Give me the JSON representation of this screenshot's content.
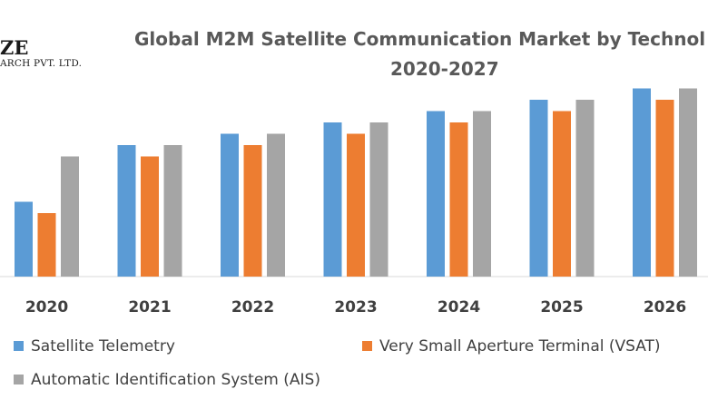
{
  "logo": {
    "name": "ZE",
    "subtitle": "ARCH PVT. LTD."
  },
  "chart_data": {
    "type": "bar",
    "title": "Global M2M Satellite Communication Market by Technol",
    "subtitle": "2020-2027",
    "categories": [
      "2020",
      "2021",
      "2022",
      "2023",
      "2024",
      "2025",
      "2026"
    ],
    "series": [
      {
        "name": "Satellite Telemetry",
        "color": "#5b9bd5",
        "values": [
          3.3,
          5.8,
          6.3,
          6.8,
          7.3,
          7.8,
          8.3
        ]
      },
      {
        "name": "Very Small Aperture Terminal (VSAT)",
        "color": "#ed7d31",
        "values": [
          2.8,
          5.3,
          5.8,
          6.3,
          6.8,
          7.3,
          7.8
        ]
      },
      {
        "name": "Automatic Identification System (AIS)",
        "color": "#a5a5a5",
        "values": [
          5.3,
          5.8,
          6.3,
          6.8,
          7.3,
          7.8,
          8.3
        ]
      }
    ],
    "ylim": [
      0,
      10
    ],
    "xlabel": "",
    "ylabel": "",
    "grid": false,
    "legend": "bottom"
  }
}
